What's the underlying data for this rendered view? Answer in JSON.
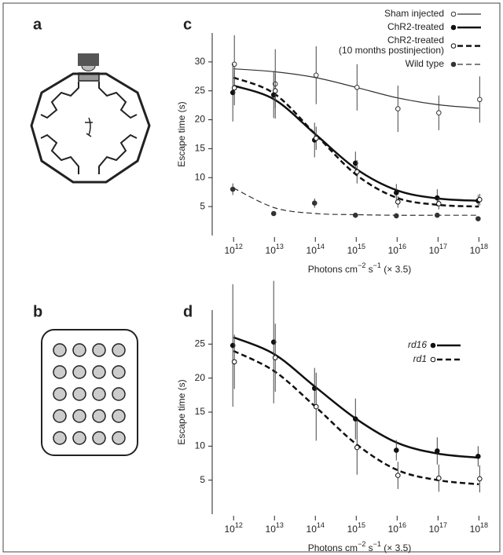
{
  "panel_labels": [
    "a",
    "b"
  ],
  "chart_data": [
    {
      "type": "scatter",
      "panel": "c",
      "xlabel": "Photons cm^−2 s^−1 (× 3.5)",
      "ylabel": "Escape time (s)",
      "x": [
        1000000000000.0,
        10000000000000.0,
        100000000000000.0,
        1000000000000000.0,
        1e+16,
        1e+17,
        1e+18
      ],
      "xscale": "log",
      "xlim": [
        300000000000.0,
        2e+18
      ],
      "xticks": [
        {
          "value": 1000000000000.0,
          "label": "10^12"
        },
        {
          "value": 10000000000000.0,
          "label": "10^13"
        },
        {
          "value": 100000000000000.0,
          "label": "10^14"
        },
        {
          "value": 1000000000000000.0,
          "label": "10^15"
        },
        {
          "value": 1e+16,
          "label": "10^16"
        },
        {
          "value": 1e+17,
          "label": "10^17"
        },
        {
          "value": 1e+18,
          "label": "10^18"
        }
      ],
      "ylim": [
        0,
        35
      ],
      "yticks": [
        5,
        10,
        15,
        20,
        25,
        30
      ],
      "legend": "upper right",
      "series": [
        {
          "name": "Sham injected",
          "color": "#333333",
          "marker": "open",
          "line": "solid",
          "width": 1.2,
          "values": [
            29.6,
            26.2,
            27.7,
            25.6,
            21.9,
            21.2,
            23.5
          ],
          "errors": [
            5,
            6,
            5,
            4,
            4,
            3,
            4
          ],
          "fit": [
            28.8,
            28.3,
            27.3,
            25.6,
            23.8,
            22.6,
            22.0
          ]
        },
        {
          "name": "ChR2-treated",
          "color": "#111111",
          "marker": "filled",
          "line": "solid",
          "width": 2.5,
          "values": [
            24.7,
            24.3,
            16.5,
            12.5,
            7.4,
            6.5,
            6.0
          ],
          "errors": [
            5,
            4,
            3,
            2,
            1.5,
            1.5,
            1
          ],
          "fit": [
            25.9,
            23.5,
            17.5,
            11.5,
            7.8,
            6.4,
            6.0
          ]
        },
        {
          "name": "ChR2-treated\n(10 months postinjection)",
          "color": "#111111",
          "marker": "open",
          "line": "dashed",
          "width": 2.5,
          "values": [
            25.5,
            25.0,
            16.8,
            11.0,
            5.8,
            5.5,
            6.2
          ],
          "errors": [
            3,
            3,
            2,
            2,
            1,
            1,
            1
          ],
          "fit": [
            27.3,
            24.5,
            17.5,
            10.5,
            6.5,
            5.3,
            5.0
          ]
        },
        {
          "name": "Wild type",
          "color": "#333333",
          "marker": "filled",
          "line": "dashed",
          "width": 1.2,
          "values": [
            8.0,
            3.8,
            5.6,
            3.5,
            3.4,
            3.5,
            2.9
          ],
          "errors": [
            1,
            0.3,
            0.8,
            0.3,
            0.3,
            0.3,
            0.3
          ],
          "fit": [
            8.2,
            4.8,
            3.8,
            3.6,
            3.5,
            3.5,
            3.5
          ]
        }
      ]
    },
    {
      "type": "scatter",
      "panel": "d",
      "xlabel": "Photons cm^−2 s^−1 (× 3.5)",
      "ylabel": "Escape time (s)",
      "x": [
        1000000000000.0,
        10000000000000.0,
        100000000000000.0,
        1000000000000000.0,
        1e+16,
        1e+17,
        1e+18
      ],
      "xscale": "log",
      "xlim": [
        300000000000.0,
        2e+18
      ],
      "xticks": [
        {
          "value": 1000000000000.0,
          "label": "10^12"
        },
        {
          "value": 10000000000000.0,
          "label": "10^13"
        },
        {
          "value": 100000000000000.0,
          "label": "10^14"
        },
        {
          "value": 1000000000000000.0,
          "label": "10^15"
        },
        {
          "value": 1e+16,
          "label": "10^16"
        },
        {
          "value": 1e+17,
          "label": "10^17"
        },
        {
          "value": 1e+18,
          "label": "10^18"
        }
      ],
      "ylim": [
        0,
        30
      ],
      "yticks": [
        5,
        10,
        15,
        20,
        25
      ],
      "legend": "upper right",
      "series": [
        {
          "name": "rd16",
          "color": "#111111",
          "marker": "filled",
          "line": "solid",
          "width": 2.5,
          "values": [
            24.8,
            25.3,
            18.5,
            14.0,
            9.4,
            9.3,
            8.5
          ],
          "errors": [
            9,
            9,
            3,
            3,
            1.5,
            2,
            1.5
          ],
          "fit": [
            26.0,
            23.5,
            18.7,
            14.0,
            10.5,
            8.9,
            8.3
          ]
        },
        {
          "name": "rd1",
          "color": "#111111",
          "marker": "open",
          "line": "dashed",
          "width": 2.5,
          "values": [
            22.4,
            23.0,
            15.8,
            9.8,
            5.7,
            5.3,
            5.2
          ],
          "errors": [
            4,
            5,
            5,
            4,
            2,
            2,
            2
          ],
          "fit": [
            24.0,
            21.0,
            15.8,
            10.3,
            6.5,
            5.0,
            4.4
          ]
        }
      ]
    }
  ]
}
